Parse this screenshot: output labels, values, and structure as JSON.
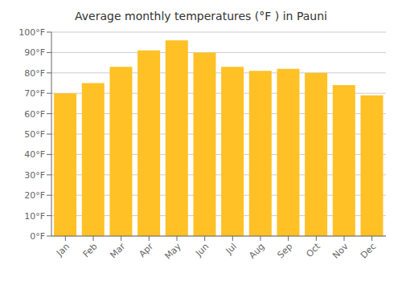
{
  "chart_data": {
    "type": "bar",
    "title": "Average monthly temperatures (°F ) in Pauni",
    "categories": [
      "Jan",
      "Feb",
      "Mar",
      "Apr",
      "May",
      "Jun",
      "Jul",
      "Aug",
      "Sep",
      "Oct",
      "Nov",
      "Dec"
    ],
    "values": [
      70,
      75,
      83,
      91,
      96,
      90,
      83,
      81,
      82,
      80,
      74,
      69
    ],
    "color": "#FFC125",
    "ylim": [
      0,
      100
    ],
    "yticks": [
      {
        "value": 0,
        "label": "0°F"
      },
      {
        "value": 10,
        "label": "10°F"
      },
      {
        "value": 20,
        "label": "20°F"
      },
      {
        "value": 30,
        "label": "30°F"
      },
      {
        "value": 40,
        "label": "40°F"
      },
      {
        "value": 50,
        "label": "50°F"
      },
      {
        "value": 60,
        "label": "60°F"
      },
      {
        "value": 70,
        "label": "70°F"
      },
      {
        "value": 80,
        "label": "80°F"
      },
      {
        "value": 90,
        "label": "90°F"
      },
      {
        "value": 100,
        "label": "100°F"
      }
    ],
    "grid": true
  }
}
